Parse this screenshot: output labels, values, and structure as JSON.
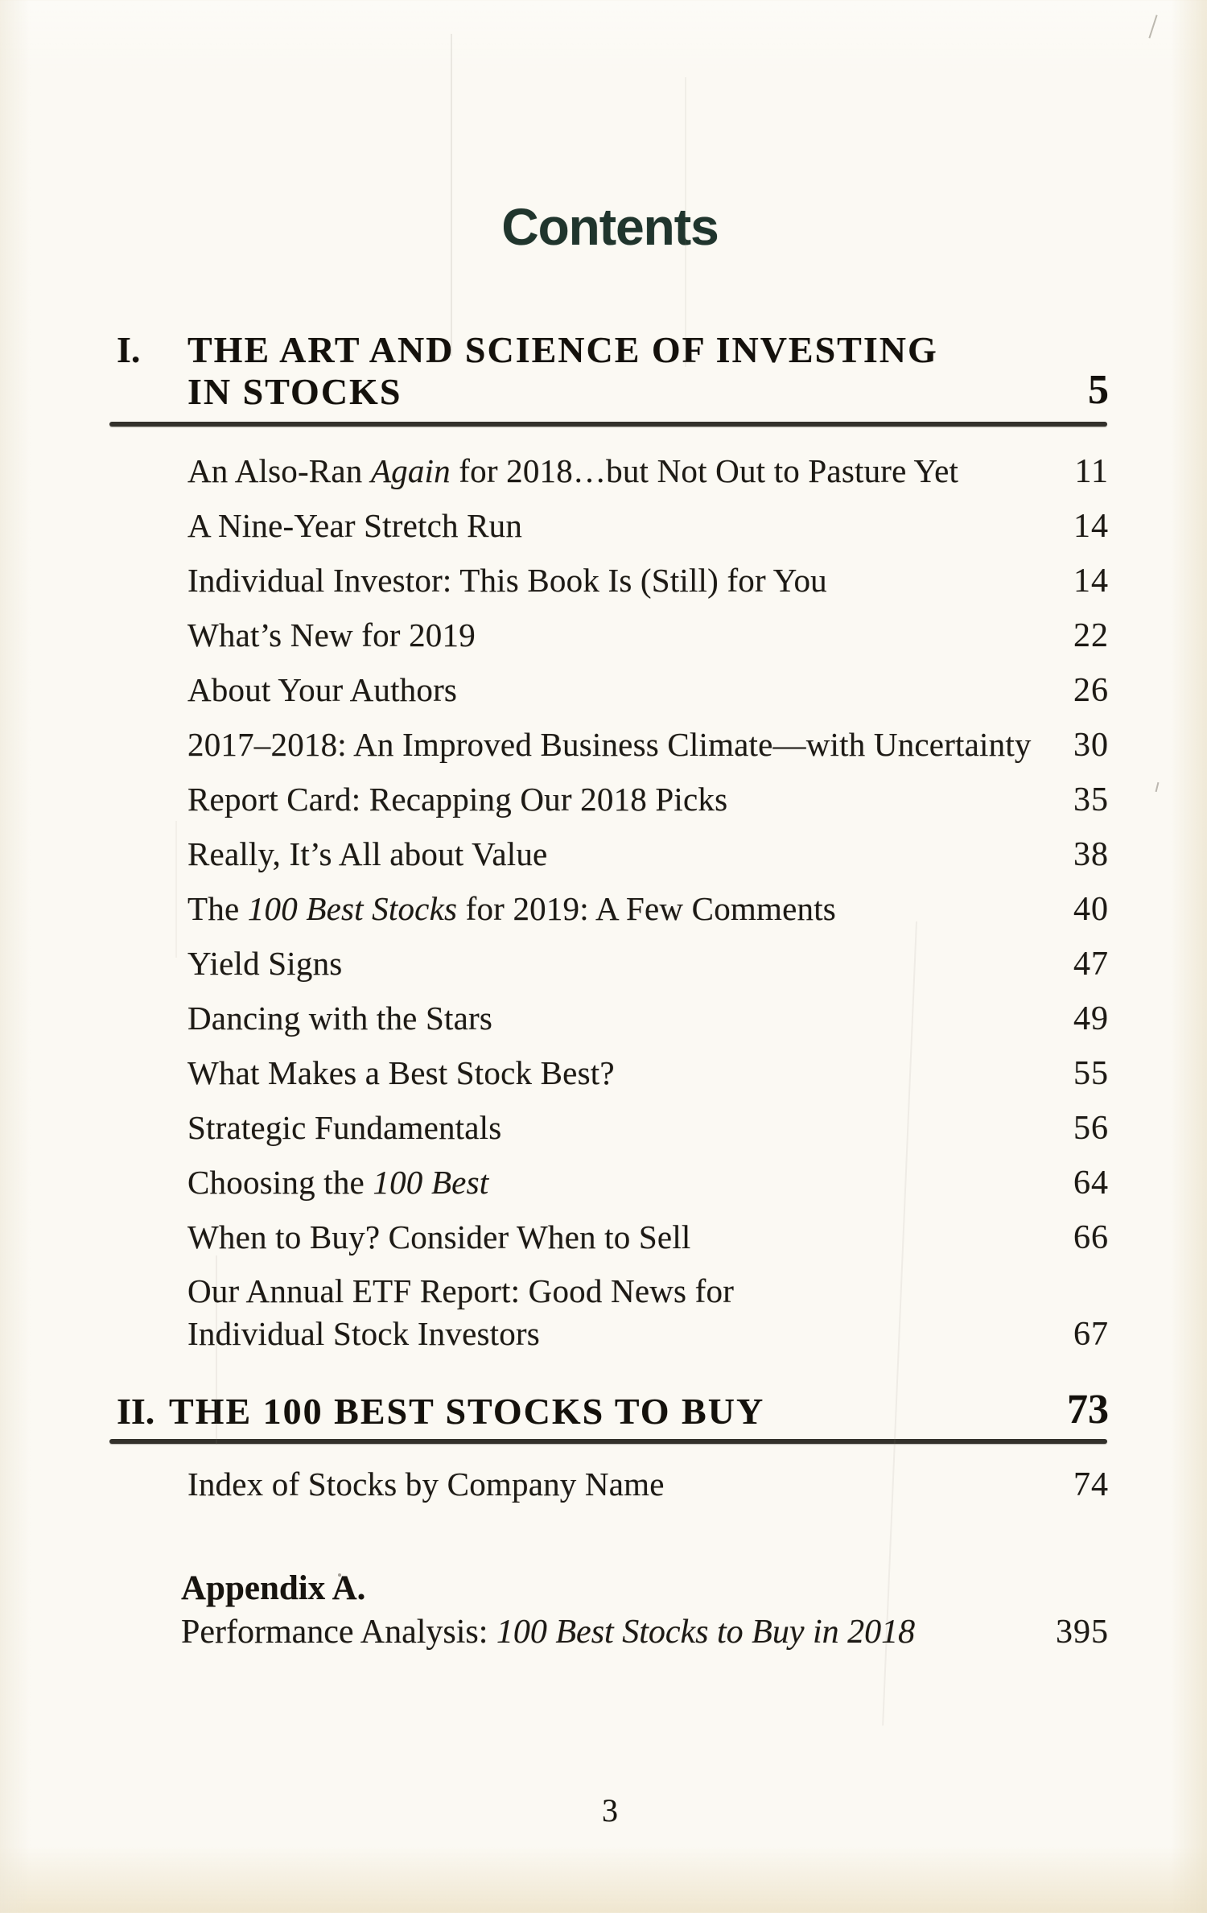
{
  "colors": {
    "title_green": "#20352d",
    "ink": "#1d1a15",
    "heading_ink": "#14110c",
    "rule": "#33312b",
    "paper": "#fbf9f3"
  },
  "title": "Contents",
  "folio": "3",
  "section1": {
    "numeral": "I.",
    "line1": "THE ART AND SCIENCE OF INVESTING",
    "line2": "IN STOCKS",
    "page": "5"
  },
  "toc1": [
    {
      "pre": "An Also-Ran ",
      "it": "Again",
      "post": " for 2018…but Not Out to Pasture Yet",
      "page": "11"
    },
    {
      "pre": "A Nine-Year Stretch Run",
      "it": "",
      "post": "",
      "page": "14"
    },
    {
      "pre": "Individual Investor: This Book Is (Still) for You",
      "it": "",
      "post": "",
      "page": "14"
    },
    {
      "pre": "What’s New for 2019",
      "it": "",
      "post": "",
      "page": "22"
    },
    {
      "pre": "About Your Authors",
      "it": "",
      "post": "",
      "page": "26"
    },
    {
      "pre": "2017–2018: An Improved Business Climate—with Uncertainty",
      "it": "",
      "post": "",
      "page": "30"
    },
    {
      "pre": "Report Card: Recapping Our 2018 Picks",
      "it": "",
      "post": "",
      "page": "35"
    },
    {
      "pre": "Really, It’s All about Value",
      "it": "",
      "post": "",
      "page": "38"
    },
    {
      "pre": "The ",
      "it": "100 Best Stocks",
      "post": " for 2019: A Few Comments",
      "page": "40"
    },
    {
      "pre": "Yield Signs",
      "it": "",
      "post": "",
      "page": "47"
    },
    {
      "pre": "Dancing with the Stars",
      "it": "",
      "post": "",
      "page": "49"
    },
    {
      "pre": "What Makes a Best Stock Best?",
      "it": "",
      "post": "",
      "page": "55"
    },
    {
      "pre": "Strategic Fundamentals",
      "it": "",
      "post": "",
      "page": "56"
    },
    {
      "pre": "Choosing the ",
      "it": "100 Best",
      "post": "",
      "page": "64"
    },
    {
      "pre": "When to Buy? Consider When to Sell",
      "it": "",
      "post": "",
      "page": "66"
    },
    {
      "pre": "Our Annual ETF Report: Good News for",
      "it": "",
      "post": "",
      "page": ""
    },
    {
      "pre": "Individual Stock Investors",
      "it": "",
      "post": "",
      "page": "67"
    }
  ],
  "section2": {
    "numeral": "II.",
    "line1": "THE 100 BEST STOCKS TO BUY",
    "page": "73"
  },
  "toc2": [
    {
      "pre": "Index of Stocks by Company Name",
      "it": "",
      "post": "",
      "page": "74"
    }
  ],
  "appendix": {
    "heading": "Appendix A.",
    "pre": "Performance Analysis: ",
    "it": "100 Best Stocks to Buy in 2018",
    "page": "395"
  }
}
